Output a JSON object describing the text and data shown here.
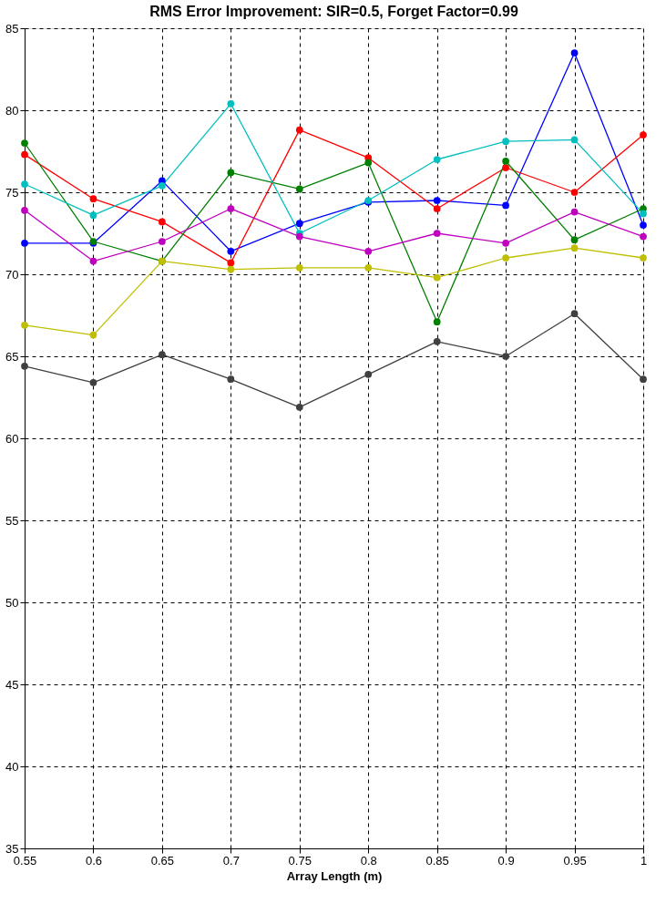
{
  "chart_data": {
    "type": "line",
    "title": "RMS Error Improvement: SIR=0.5, Forget Factor=0.99",
    "xlabel": "Array Length (m)",
    "x": [
      0.55,
      0.6,
      0.65,
      0.7,
      0.75,
      0.8,
      0.85,
      0.9,
      0.95,
      1
    ],
    "series": [
      {
        "color": "#0000ff",
        "values": [
          71.9,
          71.9,
          75.7,
          71.4,
          73.1,
          74.4,
          74.5,
          74.2,
          83.5,
          73.0
        ]
      },
      {
        "color": "#ff0000",
        "values": [
          77.3,
          74.6,
          73.2,
          70.7,
          78.8,
          77.1,
          74.0,
          76.5,
          75.0,
          78.5
        ]
      },
      {
        "color": "#008000",
        "values": [
          78.0,
          72.0,
          70.8,
          76.2,
          75.2,
          76.8,
          67.1,
          76.9,
          72.1,
          74.0
        ]
      },
      {
        "color": "#00bfbf",
        "values": [
          75.5,
          73.6,
          75.4,
          80.4,
          72.5,
          74.5,
          77.0,
          78.1,
          78.2,
          73.7
        ]
      },
      {
        "color": "#bf00bf",
        "values": [
          73.9,
          70.8,
          72.0,
          74.0,
          72.3,
          71.4,
          72.5,
          71.9,
          73.8,
          72.3
        ]
      },
      {
        "color": "#bfbf00",
        "values": [
          66.9,
          66.3,
          70.8,
          70.3,
          70.4,
          70.4,
          69.8,
          71.0,
          71.6,
          71.0
        ]
      },
      {
        "color": "#404040",
        "values": [
          64.4,
          63.4,
          65.1,
          63.6,
          61.9,
          63.9,
          65.9,
          65.0,
          67.6,
          63.6
        ]
      }
    ],
    "xlim": [
      0.55,
      1
    ],
    "xticks": [
      0.55,
      0.6,
      0.65,
      0.7,
      0.75,
      0.8,
      0.85,
      0.9,
      0.95,
      1
    ],
    "ylim": [
      35,
      85
    ],
    "yticks": [
      35,
      40,
      45,
      50,
      55,
      60,
      65,
      70,
      75,
      80,
      85
    ],
    "grid": true,
    "legend": false,
    "marker": "circle",
    "line_style": "solid"
  }
}
